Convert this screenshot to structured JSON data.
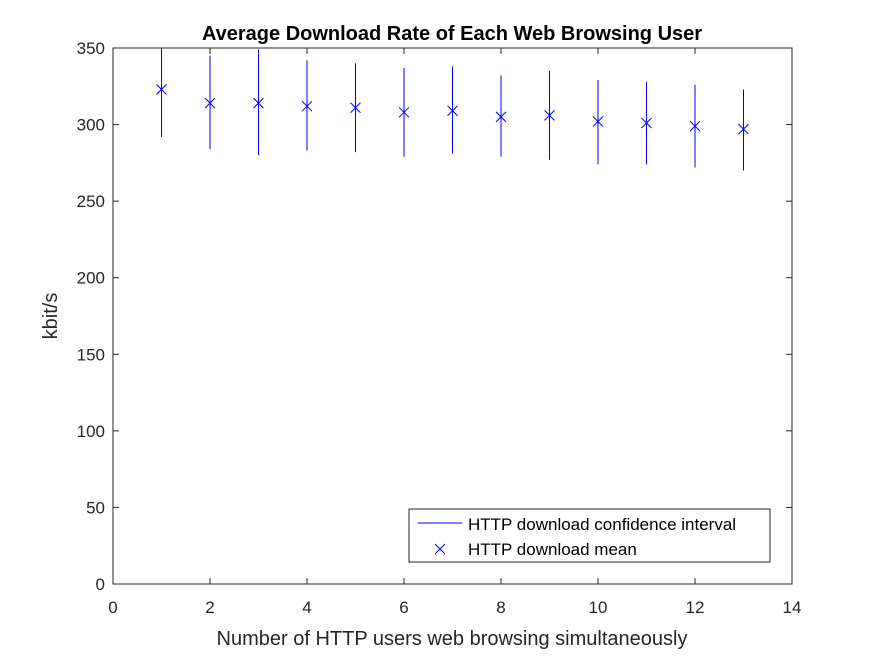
{
  "chart_data": {
    "type": "scatter",
    "title": "Average Download Rate of Each Web Browsing User",
    "xlabel": "Number of HTTP users web browsing simultaneously",
    "ylabel": "kbit/s",
    "xlim": [
      0,
      14
    ],
    "ylim": [
      0,
      350
    ],
    "xticks": [
      0,
      2,
      4,
      6,
      8,
      10,
      12,
      14
    ],
    "yticks": [
      0,
      50,
      100,
      150,
      200,
      250,
      300,
      350
    ],
    "grid": false,
    "legend_position": "bottom-right",
    "color": "#0000ff",
    "series": [
      {
        "name": "HTTP download confidence interval",
        "kind": "errorbar",
        "x": [
          1,
          2,
          3,
          4,
          5,
          6,
          7,
          8,
          9,
          10,
          11,
          12,
          13
        ],
        "low": [
          292,
          284,
          280,
          283,
          282,
          279,
          281,
          279,
          277,
          274,
          274,
          272,
          270
        ],
        "high": [
          356,
          345,
          349,
          342,
          340,
          337,
          338,
          332,
          335,
          329,
          328,
          326,
          323
        ]
      },
      {
        "name": "HTTP download mean",
        "kind": "marker-x",
        "x": [
          1,
          2,
          3,
          4,
          5,
          6,
          7,
          8,
          9,
          10,
          11,
          12,
          13
        ],
        "y": [
          323,
          314,
          314,
          312,
          311,
          308,
          309,
          305,
          306,
          302,
          301,
          299,
          297
        ]
      }
    ]
  }
}
